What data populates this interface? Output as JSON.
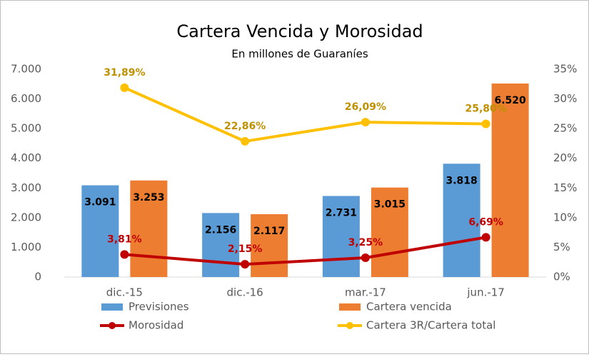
{
  "chart_data": {
    "type": "bar",
    "title": "Cartera Vencida y Morosidad",
    "subtitle": "En millones de Guaraníes",
    "categories": [
      "dic.-15",
      "dic.-16",
      "mar.-17",
      "jun.-17"
    ],
    "series": [
      {
        "name": "Previsiones",
        "color": "#5b9bd5",
        "values": [
          3091,
          2156,
          2731,
          3818
        ],
        "value_labels": [
          "3.091",
          "2.156",
          "2.731",
          "3.818"
        ]
      },
      {
        "name": "Cartera vencida",
        "color": "#ed7d31",
        "values": [
          3253,
          2117,
          3015,
          6520
        ],
        "value_labels": [
          "3.253",
          "2.117",
          "3.015",
          "6.520"
        ]
      },
      {
        "name": "Morosidad",
        "type": "line",
        "axis": "y2",
        "color": "#c00000",
        "values": [
          3.81,
          2.15,
          3.25,
          6.69
        ],
        "value_labels": [
          "3,81%",
          "2,15%",
          "3,25%",
          "6,69%"
        ]
      },
      {
        "name": "Cartera 3R/Cartera total",
        "type": "line",
        "axis": "y2",
        "color": "#ffc000",
        "values": [
          31.89,
          22.86,
          26.09,
          25.8
        ],
        "value_labels": [
          "31,89%",
          "22,86%",
          "26,09%",
          "25,80%"
        ]
      }
    ],
    "ylim": [
      0,
      7000
    ],
    "yticks": [
      0,
      {
        "value": 1000,
        "label": "1.000"
      },
      {
        "value": 2000,
        "label": "2.000"
      },
      {
        "value": 3000,
        "label": "3.000"
      },
      {
        "value": 4000,
        "label": "4.000"
      },
      {
        "value": 5000,
        "label": "5.000"
      },
      {
        "value": 6000,
        "label": "6.000"
      },
      {
        "value": 7000,
        "label": "7.000"
      }
    ],
    "y2lim": [
      0,
      35
    ],
    "y2ticks": [
      {
        "value": 0,
        "label": "0%"
      },
      {
        "value": 5,
        "label": "5%"
      },
      {
        "value": 10,
        "label": "10%"
      },
      {
        "value": 15,
        "label": "15%"
      },
      {
        "value": 20,
        "label": "20%"
      },
      {
        "value": 25,
        "label": "25%"
      },
      {
        "value": 30,
        "label": "30%"
      },
      {
        "value": 35,
        "label": "35%"
      }
    ],
    "grid": false
  }
}
